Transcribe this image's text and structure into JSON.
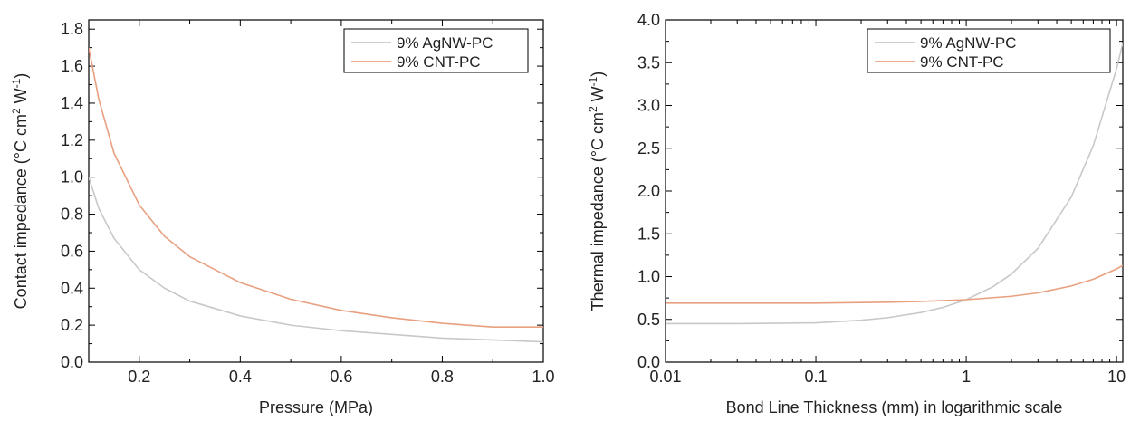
{
  "chart_data": [
    {
      "type": "line",
      "title": "",
      "xlabel": "Pressure (MPa)",
      "ylabel": "Contact impedance (°C cm² W⁻¹)",
      "ylabel_parts": {
        "main": "Contact impedance (°C cm",
        "sup1": "2",
        "mid": " W",
        "sup2": "-1",
        "end": ")"
      },
      "xlim": [
        0.1,
        1.0
      ],
      "ylim": [
        0.0,
        1.85
      ],
      "xscale": "linear",
      "xticks": [
        0.2,
        0.4,
        0.6,
        0.8,
        1.0
      ],
      "xtick_labels": [
        "0.2",
        "0.4",
        "0.6",
        "0.8",
        "1.0"
      ],
      "yticks": [
        0.0,
        0.2,
        0.4,
        0.6,
        0.8,
        1.0,
        1.2,
        1.4,
        1.6,
        1.8
      ],
      "ytick_labels": [
        "0.0",
        "0.2",
        "0.4",
        "0.6",
        "0.8",
        "1.0",
        "1.2",
        "1.4",
        "1.6",
        "1.8"
      ],
      "grid": false,
      "legend_position": "top-right",
      "series": [
        {
          "name": "9% AgNW-PC",
          "color": "#c8c8c8",
          "x": [
            0.1,
            0.12,
            0.15,
            0.2,
            0.25,
            0.3,
            0.4,
            0.5,
            0.6,
            0.7,
            0.8,
            0.9,
            1.0
          ],
          "y": [
            1.0,
            0.83,
            0.67,
            0.5,
            0.4,
            0.33,
            0.25,
            0.2,
            0.17,
            0.15,
            0.13,
            0.12,
            0.11
          ]
        },
        {
          "name": "9% CNT-PC",
          "color": "#e8a080",
          "x": [
            0.1,
            0.12,
            0.15,
            0.2,
            0.25,
            0.3,
            0.4,
            0.5,
            0.6,
            0.7,
            0.8,
            0.9,
            1.0
          ],
          "y": [
            1.7,
            1.42,
            1.13,
            0.85,
            0.68,
            0.57,
            0.43,
            0.34,
            0.28,
            0.24,
            0.21,
            0.19,
            0.19
          ]
        }
      ]
    },
    {
      "type": "line",
      "title": "",
      "xlabel": "Bond Line Thickness (mm) in logarithmic scale",
      "ylabel": "Thermal impedance (°C cm² W⁻¹)",
      "ylabel_parts": {
        "main": "Thermal impedance (°C cm",
        "sup1": "2",
        "mid": " W",
        "sup2": "-1",
        "end": ")"
      },
      "xlim": [
        0.01,
        11
      ],
      "ylim": [
        0.0,
        4.0
      ],
      "xscale": "log",
      "xticks": [
        0.01,
        0.1,
        1,
        10
      ],
      "xtick_labels": [
        "0.01",
        "0.1",
        "1",
        "10"
      ],
      "yticks": [
        0.0,
        0.5,
        1.0,
        1.5,
        2.0,
        2.5,
        3.0,
        3.5,
        4.0
      ],
      "ytick_labels": [
        "0.0",
        "0.5",
        "1.0",
        "1.5",
        "2.0",
        "2.5",
        "3.0",
        "3.5",
        "4.0"
      ],
      "grid": false,
      "legend_position": "top-right",
      "series": [
        {
          "name": "9% AgNW-PC",
          "color": "#c8c8c8",
          "x": [
            0.01,
            0.03,
            0.1,
            0.2,
            0.3,
            0.5,
            0.7,
            1,
            1.5,
            2,
            3,
            5,
            7,
            10,
            11
          ],
          "y": [
            0.45,
            0.45,
            0.46,
            0.49,
            0.52,
            0.58,
            0.64,
            0.73,
            0.88,
            1.03,
            1.33,
            1.93,
            2.53,
            3.43,
            3.73
          ]
        },
        {
          "name": "9% CNT-PC",
          "color": "#e8a080",
          "x": [
            0.01,
            0.03,
            0.1,
            0.3,
            0.5,
            1,
            2,
            3,
            5,
            7,
            10,
            11
          ],
          "y": [
            0.69,
            0.69,
            0.69,
            0.7,
            0.71,
            0.73,
            0.77,
            0.81,
            0.89,
            0.97,
            1.09,
            1.13
          ]
        }
      ]
    }
  ]
}
